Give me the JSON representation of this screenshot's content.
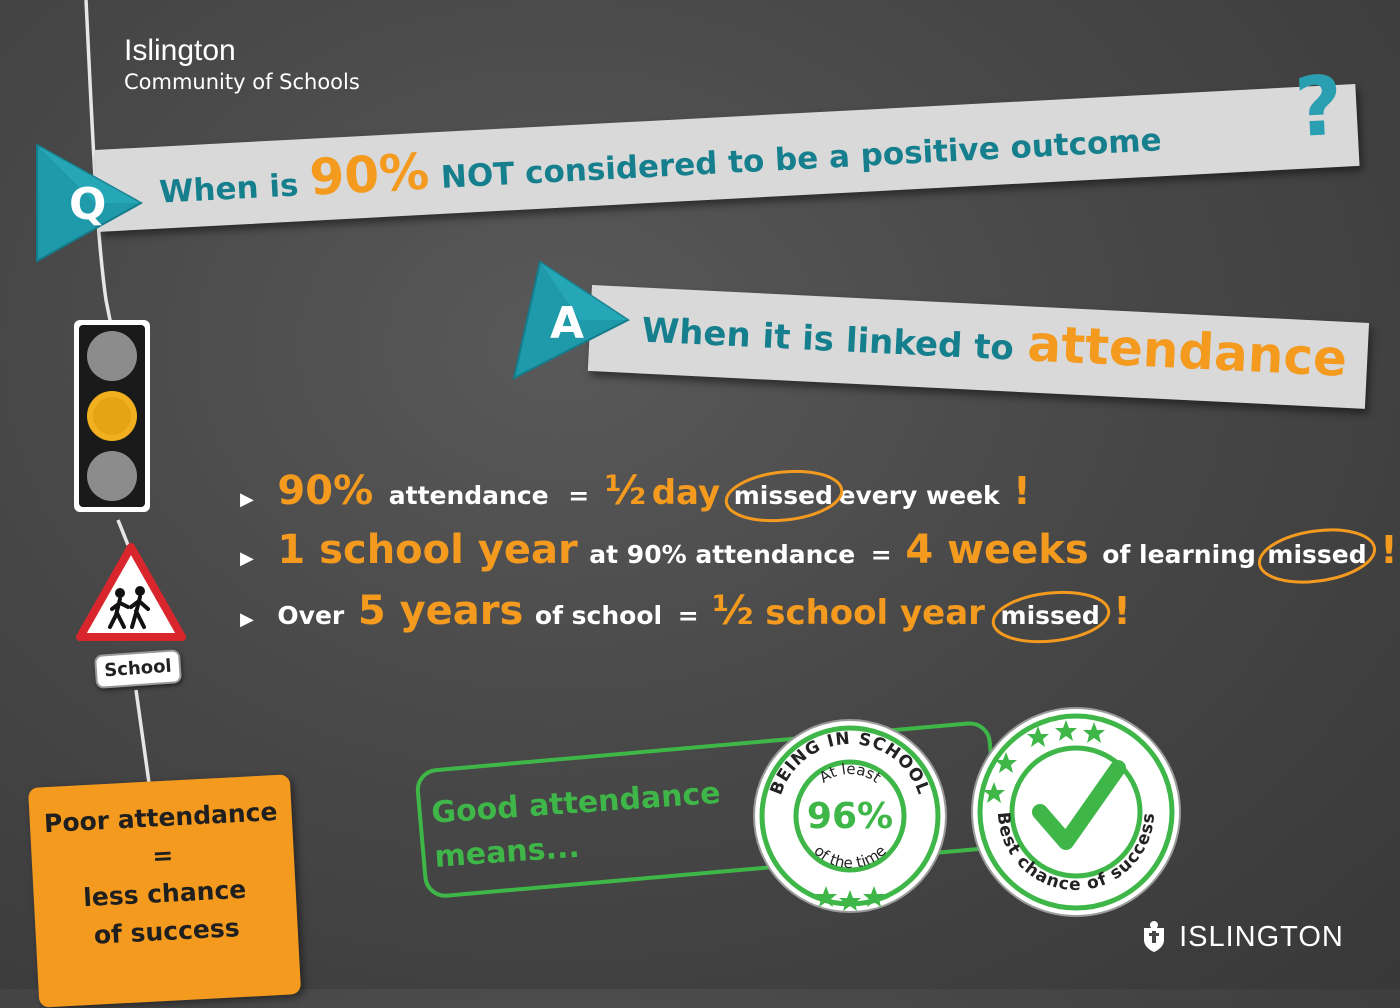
{
  "header": {
    "line1": "Islington",
    "line2": "Community of Schools"
  },
  "question": {
    "badge_letter": "Q",
    "text_before": "When is",
    "highlight": "90%",
    "text_after": "NOT considered to be a positive outcome",
    "mark": "?"
  },
  "answer": {
    "badge_letter": "A",
    "text": "When it is linked to",
    "highlight": "attendance"
  },
  "facts": [
    {
      "p1": "90%",
      "p2": "attendance",
      "p3": "=",
      "p4": "½",
      "p5": "day",
      "circled": "missed",
      "p6": "every week",
      "excl": "!"
    },
    {
      "p1": "1 school year",
      "p2": "at 90% attendance",
      "p3": "=",
      "p4": "4 weeks",
      "p5": "of learning",
      "circled": "missed",
      "excl": "!"
    },
    {
      "p1": "Over",
      "p2": "5 years",
      "p3": "of school",
      "p4": "=",
      "p5": "½",
      "p6": "school year",
      "circled": "missed",
      "excl": "!"
    }
  ],
  "school_sign": {
    "label": "School"
  },
  "poor": {
    "line1": "Poor attendance",
    "line2": "=",
    "line3": "less chance",
    "line4": "of success"
  },
  "good": {
    "line1": "Good attendance",
    "line2": "means..."
  },
  "badge_school": {
    "arc_top": "BEING IN SCHOOL",
    "arc_inner": "At least",
    "value": "96%",
    "arc_bottom": "of the time"
  },
  "badge_success": {
    "arc_bottom": "Best chance of success"
  },
  "council": {
    "name": "ISLINGTON"
  },
  "colors": {
    "teal": "#157f8d",
    "teal_light": "#2a9fb1",
    "orange": "#f39a1f",
    "green": "#3fb648",
    "banner": "#d9d9d9",
    "background": "#484848"
  }
}
